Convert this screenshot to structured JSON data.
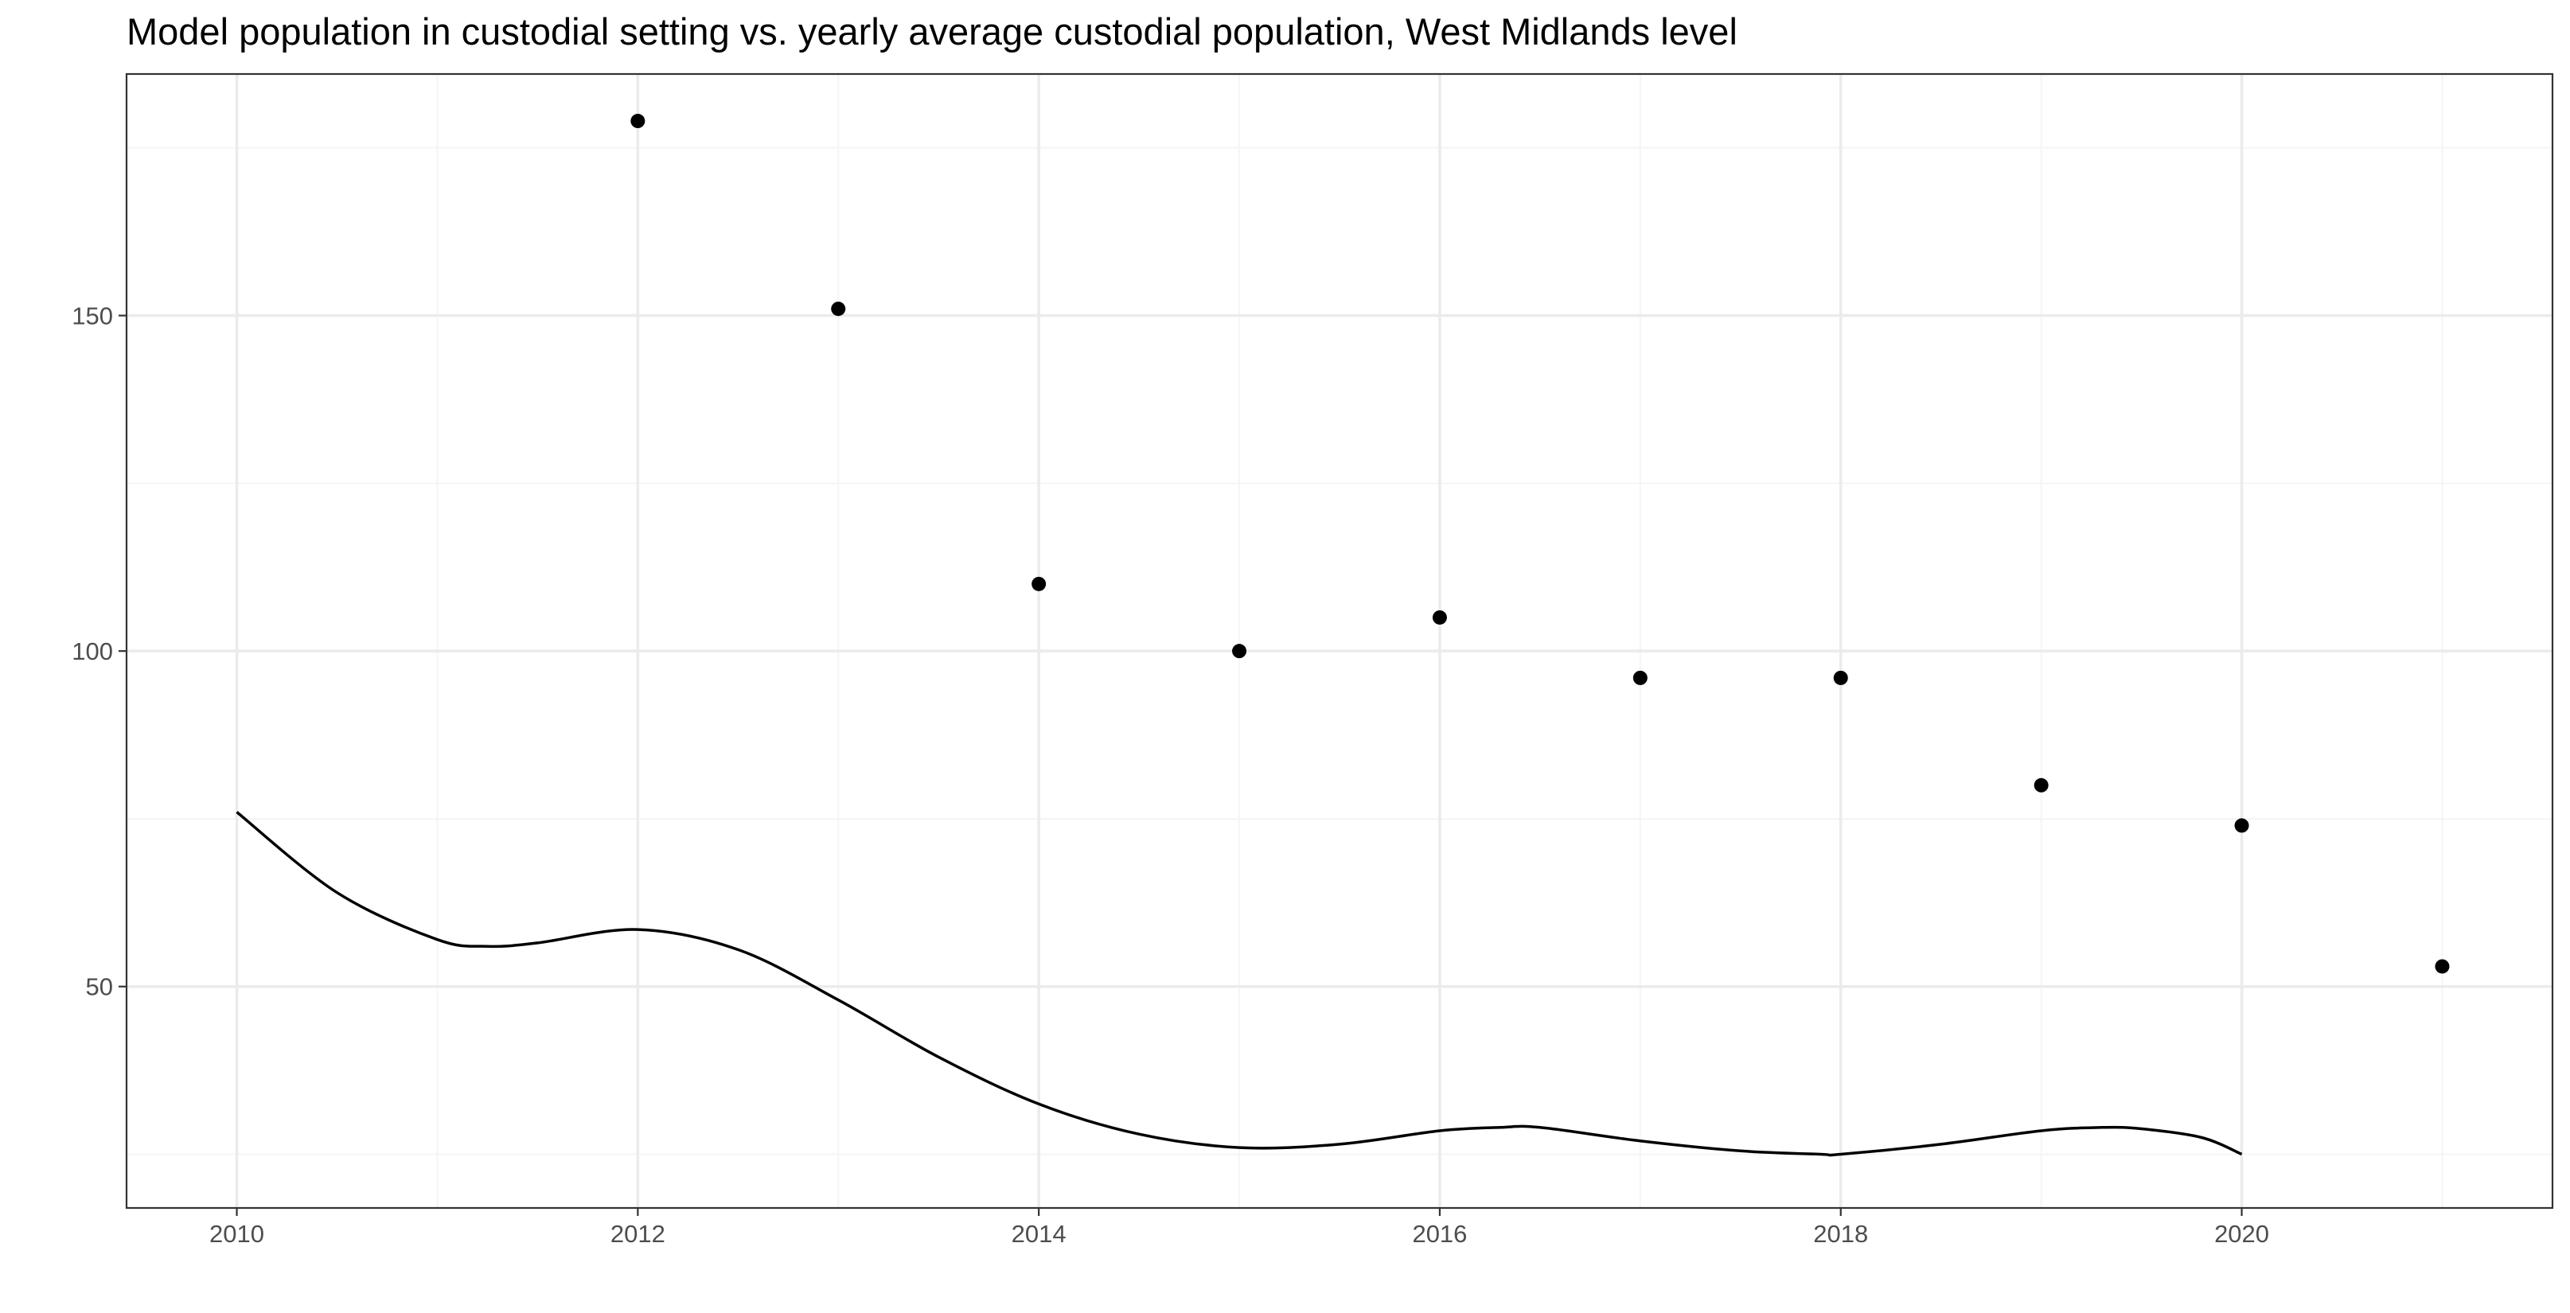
{
  "chart_data": {
    "type": "scatter",
    "title": "Model population in custodial setting vs. yearly average custodial population, West Midlands level",
    "xlabel": "",
    "ylabel": "",
    "xlim": [
      2009.45,
      2021.55
    ],
    "ylim": [
      17,
      186
    ],
    "x_ticks": [
      2010,
      2012,
      2014,
      2016,
      2018,
      2020
    ],
    "x_tick_labels": [
      "2010",
      "2012",
      "2014",
      "2016",
      "2018",
      "2020"
    ],
    "y_ticks": [
      50,
      100,
      150
    ],
    "y_tick_labels": [
      "50",
      "100",
      "150"
    ],
    "grid": true,
    "series": [
      {
        "kind": "points",
        "x": [
          2012,
          2013,
          2014,
          2015,
          2016,
          2017,
          2018,
          2019,
          2020,
          2021
        ],
        "y": [
          179,
          151,
          110,
          100,
          105,
          96,
          96,
          80,
          74,
          53
        ]
      },
      {
        "kind": "line",
        "x": [
          2010,
          2010.5,
          2011,
          2011.25,
          2011.5,
          2012,
          2012.5,
          2013,
          2013.5,
          2014,
          2014.5,
          2015,
          2015.5,
          2016,
          2016.3,
          2016.5,
          2017,
          2017.5,
          2017.9,
          2018,
          2018.5,
          2019,
          2019.3,
          2019.5,
          2019.8,
          2020
        ],
        "y": [
          76,
          64,
          57,
          56,
          56.5,
          58.5,
          55.5,
          48,
          39.5,
          32.5,
          28,
          26,
          26.5,
          28.5,
          29,
          29,
          27,
          25.5,
          25,
          25,
          26.5,
          28.5,
          29,
          28.8,
          27.5,
          25
        ]
      }
    ],
    "colors": {
      "background": "#ffffff",
      "grid_major": "#ebebeb",
      "grid_minor": "#f5f5f5",
      "panel_border": "#333333",
      "marks": "#000000",
      "tick_text": "#4d4d4d"
    }
  }
}
